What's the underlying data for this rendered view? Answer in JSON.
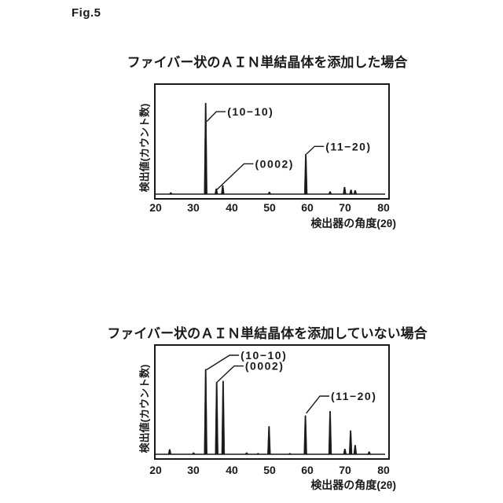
{
  "figure_label": "Fig.5",
  "colors": {
    "ink": "#1a1a1a",
    "background": "#ffffff"
  },
  "chart_data": [
    {
      "type": "line",
      "title": "ファイバー状のＡＩＮ単結晶体を添加した場合",
      "ylabel": "検出値(カウント数)",
      "xlabel": "検出器の角度(2θ)",
      "x_ticks": [
        20,
        30,
        40,
        50,
        60,
        70,
        80
      ],
      "x_range": [
        20,
        80.5
      ],
      "y_range_note": "intensity in counts, unlabeled axis, baseline to 100%",
      "grid": false,
      "legend": "none",
      "peaks": [
        {
          "two_theta": 24.0,
          "height_pct": 1.5
        },
        {
          "two_theta": 33.2,
          "height_pct": 84
        },
        {
          "two_theta": 36.0,
          "height_pct": 5
        },
        {
          "two_theta": 37.7,
          "height_pct": 8
        },
        {
          "two_theta": 50.0,
          "height_pct": 2
        },
        {
          "two_theta": 59.6,
          "height_pct": 37
        },
        {
          "two_theta": 66.0,
          "height_pct": 2.5
        },
        {
          "two_theta": 69.8,
          "height_pct": 6.5
        },
        {
          "two_theta": 71.5,
          "height_pct": 4
        },
        {
          "two_theta": 72.6,
          "height_pct": 3.5
        }
      ],
      "annotations": [
        {
          "label": "(10−10)",
          "text_two_theta": 38.9,
          "text_height_pct": 76,
          "attach_two_theta": 33.5,
          "attach_height_pct": 67
        },
        {
          "label": "(0002)",
          "text_two_theta": 46.2,
          "text_height_pct": 28,
          "attach_two_theta": 36.1,
          "attach_height_pct": 4
        },
        {
          "label": "(11−20)",
          "text_two_theta": 64.8,
          "text_height_pct": 44,
          "attach_two_theta": 59.8,
          "attach_height_pct": 37
        }
      ]
    },
    {
      "type": "line",
      "title": "ファイバー状のＡＩＮ単結晶体を添加していない場合",
      "ylabel": "検出値(カウント数)",
      "xlabel": "検出器の角度(2θ)",
      "x_ticks": [
        20,
        30,
        40,
        50,
        60,
        70,
        80
      ],
      "x_range": [
        20,
        80.5
      ],
      "y_range_note": "intensity in counts, unlabeled axis, baseline to 100%",
      "grid": false,
      "legend": "none",
      "peaks": [
        {
          "two_theta": 23.7,
          "height_pct": 4.5
        },
        {
          "two_theta": 30.0,
          "height_pct": 1.5
        },
        {
          "two_theta": 33.2,
          "height_pct": 79
        },
        {
          "two_theta": 36.1,
          "height_pct": 67
        },
        {
          "two_theta": 37.8,
          "height_pct": 68
        },
        {
          "two_theta": 44.0,
          "height_pct": 1.5
        },
        {
          "two_theta": 47.0,
          "height_pct": 1
        },
        {
          "two_theta": 49.9,
          "height_pct": 26
        },
        {
          "two_theta": 55.4,
          "height_pct": 1
        },
        {
          "two_theta": 59.5,
          "height_pct": 36
        },
        {
          "two_theta": 66.0,
          "height_pct": 40
        },
        {
          "two_theta": 69.9,
          "height_pct": 5
        },
        {
          "two_theta": 71.4,
          "height_pct": 22
        },
        {
          "two_theta": 72.6,
          "height_pct": 8.5
        },
        {
          "two_theta": 76.3,
          "height_pct": 2.5
        }
      ],
      "annotations": [
        {
          "label": "(10−10)",
          "text_two_theta": 42.4,
          "text_height_pct": 92,
          "attach_two_theta": 33.4,
          "attach_height_pct": 78.5
        },
        {
          "label": "(0002)",
          "text_two_theta": 43.6,
          "text_height_pct": 82,
          "attach_two_theta": 36.2,
          "attach_height_pct": 67
        },
        {
          "label": "(11−20)",
          "text_two_theta": 66.2,
          "text_height_pct": 54,
          "attach_two_theta": 59.7,
          "attach_height_pct": 38
        }
      ]
    }
  ]
}
